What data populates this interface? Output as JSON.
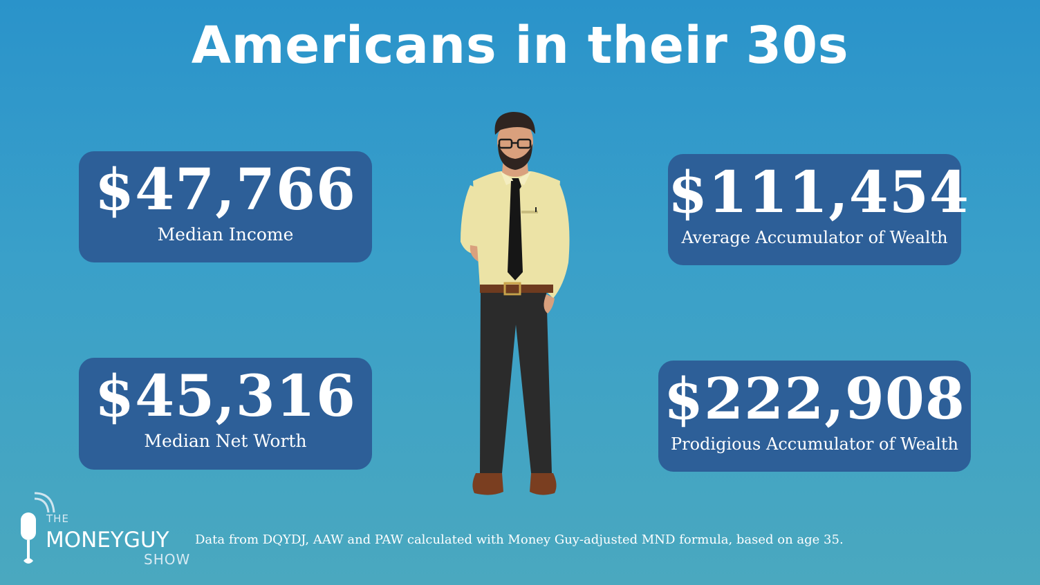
{
  "title": "Americans in their 30s",
  "stats": {
    "median_income": {
      "value": "$47,766",
      "label": "Median Income"
    },
    "average_accumulator": {
      "value": "$111,454",
      "label": "Average Accumulator of Wealth"
    },
    "median_net_worth": {
      "value": "$45,316",
      "label": "Median Net Worth"
    },
    "prodigious_accumulator": {
      "value": "$222,908",
      "label": "Prodigious Accumulator of Wealth"
    }
  },
  "logo": {
    "the": "THE",
    "main": "MONEYGUY",
    "show": "SHOW"
  },
  "footnote": "Data from DQYDJ, AAW and PAW calculated with Money Guy-adjusted MND formula, based on age 35.",
  "colors": {
    "background_top": "#2a93ca",
    "background_bottom": "#4aa8bf",
    "card": "#2d5f98",
    "text": "#ffffff"
  }
}
